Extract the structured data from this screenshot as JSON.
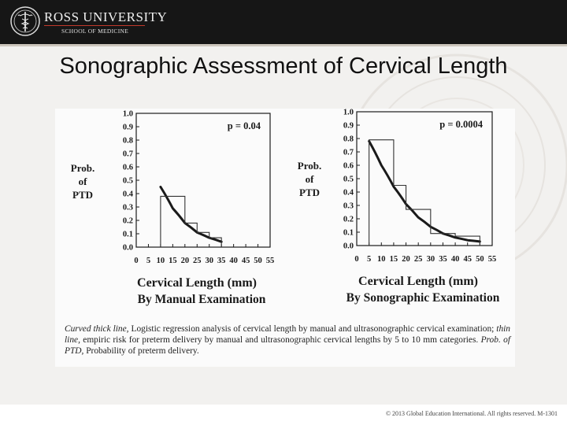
{
  "header": {
    "institution": "ROSS UNIVERSITY",
    "school": "SCHOOL OF MEDICINE",
    "title": "Sonographic Assessment of Cervical Length"
  },
  "colors": {
    "header_bg": "#161616",
    "accent_line": "#c0392b",
    "slide_bg": "#f2f1ef"
  },
  "logo": {
    "icon": "caduceus-seal-icon"
  },
  "chart_data": [
    {
      "type": "line",
      "ylabel": "Prob. of PTD",
      "xlabel": "Cervical Length (mm)",
      "xlabel2": "By Manual Examination",
      "annotation": "p = 0.04",
      "xticks": [
        "0",
        "5",
        "10",
        "15",
        "20",
        "25",
        "30",
        "35",
        "40",
        "45",
        "50",
        "55"
      ],
      "yticks": [
        "1.0",
        "0.9",
        "0.8",
        "0.7",
        "0.6",
        "0.5",
        "0.4",
        "0.3",
        "0.2",
        "0.1",
        "0.0"
      ],
      "xlim": [
        0,
        55
      ],
      "ylim": [
        0,
        1
      ],
      "grid": false,
      "series": [
        {
          "style": "thick-curve",
          "x": [
            10,
            15,
            20,
            25,
            30,
            35
          ],
          "y": [
            0.45,
            0.29,
            0.18,
            0.11,
            0.07,
            0.04
          ]
        },
        {
          "style": "thin-step",
          "bins": [
            [
              10,
              20,
              0.38
            ],
            [
              20,
              25,
              0.18
            ],
            [
              25,
              30,
              0.11
            ],
            [
              30,
              35,
              0.07
            ]
          ]
        }
      ]
    },
    {
      "type": "line",
      "ylabel": "Prob. of PTD",
      "xlabel": "Cervical Length (mm)",
      "xlabel2": "By Sonographic Examination",
      "annotation": "p = 0.0004",
      "xticks": [
        "0",
        "5",
        "10",
        "15",
        "20",
        "25",
        "30",
        "35",
        "40",
        "45",
        "50",
        "55"
      ],
      "yticks": [
        "1.0",
        "0.9",
        "0.8",
        "0.7",
        "0.6",
        "0.5",
        "0.4",
        "0.3",
        "0.2",
        "0.1",
        "0.0"
      ],
      "xlim": [
        0,
        55
      ],
      "ylim": [
        0,
        1
      ],
      "grid": false,
      "series": [
        {
          "style": "thick-curve",
          "x": [
            5,
            10,
            15,
            20,
            25,
            30,
            35,
            40,
            45,
            50
          ],
          "y": [
            0.78,
            0.6,
            0.44,
            0.31,
            0.21,
            0.14,
            0.09,
            0.06,
            0.04,
            0.03
          ]
        },
        {
          "style": "thin-step",
          "bins": [
            [
              5,
              15,
              0.79
            ],
            [
              15,
              20,
              0.45
            ],
            [
              20,
              30,
              0.27
            ],
            [
              30,
              40,
              0.09
            ],
            [
              40,
              50,
              0.07
            ]
          ]
        }
      ]
    }
  ],
  "caption": {
    "part1": "Curved thick line,",
    "part2": " Logistic regression analysis of cervical length by manual and ultrasonographic cervical examination; ",
    "part3": "thin line,",
    "part4": " empiric risk for preterm delivery by manual and ultrasonographic cervical lengths by 5 to 10 mm categories. ",
    "part5": "Prob. of PTD,",
    "part6": " Probability of preterm delivery."
  },
  "footer": "© 2013 Global Education International. All rights reserved. M-1301"
}
